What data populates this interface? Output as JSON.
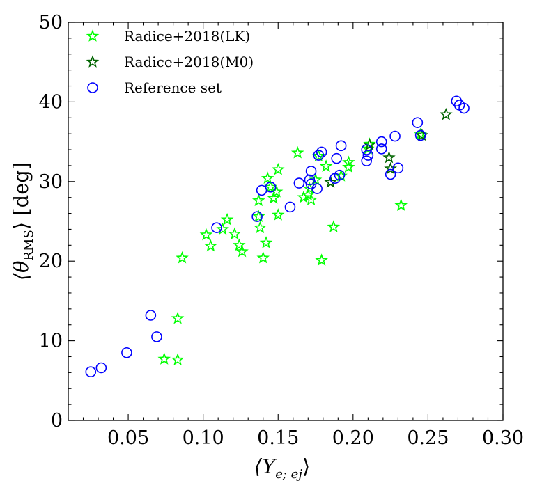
{
  "chart_data": {
    "type": "scatter",
    "xlim": [
      0.01,
      0.3
    ],
    "ylim": [
      0,
      50
    ],
    "xticks": [
      "0.05",
      "0.10",
      "0.15",
      "0.20",
      "0.25",
      "0.30"
    ],
    "yticks": [
      "0",
      "10",
      "20",
      "30",
      "40",
      "50"
    ],
    "xlabel": "⟨Y",
    "xlabel_sub": "e; ej",
    "xlabel_close": "⟩",
    "ylabel": "⟨θ",
    "ylabel_sub": "RMS",
    "ylabel_close": "⟩ [deg]",
    "grid": false,
    "legend_position": "top-left",
    "series": [
      {
        "name": "Radice+2018(LK)",
        "marker": "star",
        "color": "#00ff00",
        "points": [
          [
            0.074,
            7.7
          ],
          [
            0.083,
            7.6
          ],
          [
            0.083,
            12.8
          ],
          [
            0.086,
            20.4
          ],
          [
            0.102,
            23.3
          ],
          [
            0.105,
            21.9
          ],
          [
            0.113,
            24.0
          ],
          [
            0.116,
            25.2
          ],
          [
            0.121,
            23.4
          ],
          [
            0.124,
            22.0
          ],
          [
            0.126,
            21.2
          ],
          [
            0.137,
            27.6
          ],
          [
            0.137,
            25.6
          ],
          [
            0.138,
            24.2
          ],
          [
            0.14,
            20.4
          ],
          [
            0.142,
            22.3
          ],
          [
            0.143,
            30.4
          ],
          [
            0.145,
            29.3
          ],
          [
            0.147,
            27.9
          ],
          [
            0.149,
            28.7
          ],
          [
            0.15,
            31.5
          ],
          [
            0.15,
            25.8
          ],
          [
            0.163,
            33.6
          ],
          [
            0.167,
            28.0
          ],
          [
            0.17,
            28.3
          ],
          [
            0.171,
            29.1
          ],
          [
            0.172,
            27.7
          ],
          [
            0.175,
            30.2
          ],
          [
            0.177,
            33.2
          ],
          [
            0.179,
            20.1
          ],
          [
            0.182,
            31.9
          ],
          [
            0.187,
            24.3
          ],
          [
            0.192,
            30.7
          ],
          [
            0.197,
            32.4
          ],
          [
            0.197,
            31.8
          ],
          [
            0.21,
            34.1
          ],
          [
            0.211,
            34.7
          ],
          [
            0.232,
            27.0
          ],
          [
            0.245,
            35.9
          ]
        ]
      },
      {
        "name": "Radice+2018(M0)",
        "marker": "star",
        "color": "#006400",
        "points": [
          [
            0.185,
            29.9
          ],
          [
            0.211,
            34.6
          ],
          [
            0.224,
            33.0
          ],
          [
            0.225,
            31.6
          ],
          [
            0.246,
            35.8
          ],
          [
            0.262,
            38.4
          ]
        ]
      },
      {
        "name": "Reference set",
        "marker": "circle",
        "color": "#0000ff",
        "points": [
          [
            0.025,
            6.1
          ],
          [
            0.032,
            6.6
          ],
          [
            0.049,
            8.5
          ],
          [
            0.065,
            13.2
          ],
          [
            0.069,
            10.5
          ],
          [
            0.109,
            24.2
          ],
          [
            0.136,
            25.6
          ],
          [
            0.139,
            28.9
          ],
          [
            0.145,
            29.3
          ],
          [
            0.158,
            26.8
          ],
          [
            0.164,
            29.8
          ],
          [
            0.171,
            30.2
          ],
          [
            0.172,
            29.7
          ],
          [
            0.172,
            31.3
          ],
          [
            0.176,
            29.1
          ],
          [
            0.177,
            33.3
          ],
          [
            0.179,
            33.7
          ],
          [
            0.188,
            30.4
          ],
          [
            0.189,
            32.9
          ],
          [
            0.191,
            30.8
          ],
          [
            0.192,
            34.5
          ],
          [
            0.209,
            34.0
          ],
          [
            0.209,
            32.6
          ],
          [
            0.21,
            33.3
          ],
          [
            0.219,
            35.0
          ],
          [
            0.219,
            34.1
          ],
          [
            0.225,
            30.9
          ],
          [
            0.228,
            35.7
          ],
          [
            0.23,
            31.7
          ],
          [
            0.243,
            37.4
          ],
          [
            0.245,
            35.8
          ],
          [
            0.269,
            40.1
          ],
          [
            0.271,
            39.6
          ],
          [
            0.274,
            39.2
          ]
        ]
      }
    ]
  }
}
